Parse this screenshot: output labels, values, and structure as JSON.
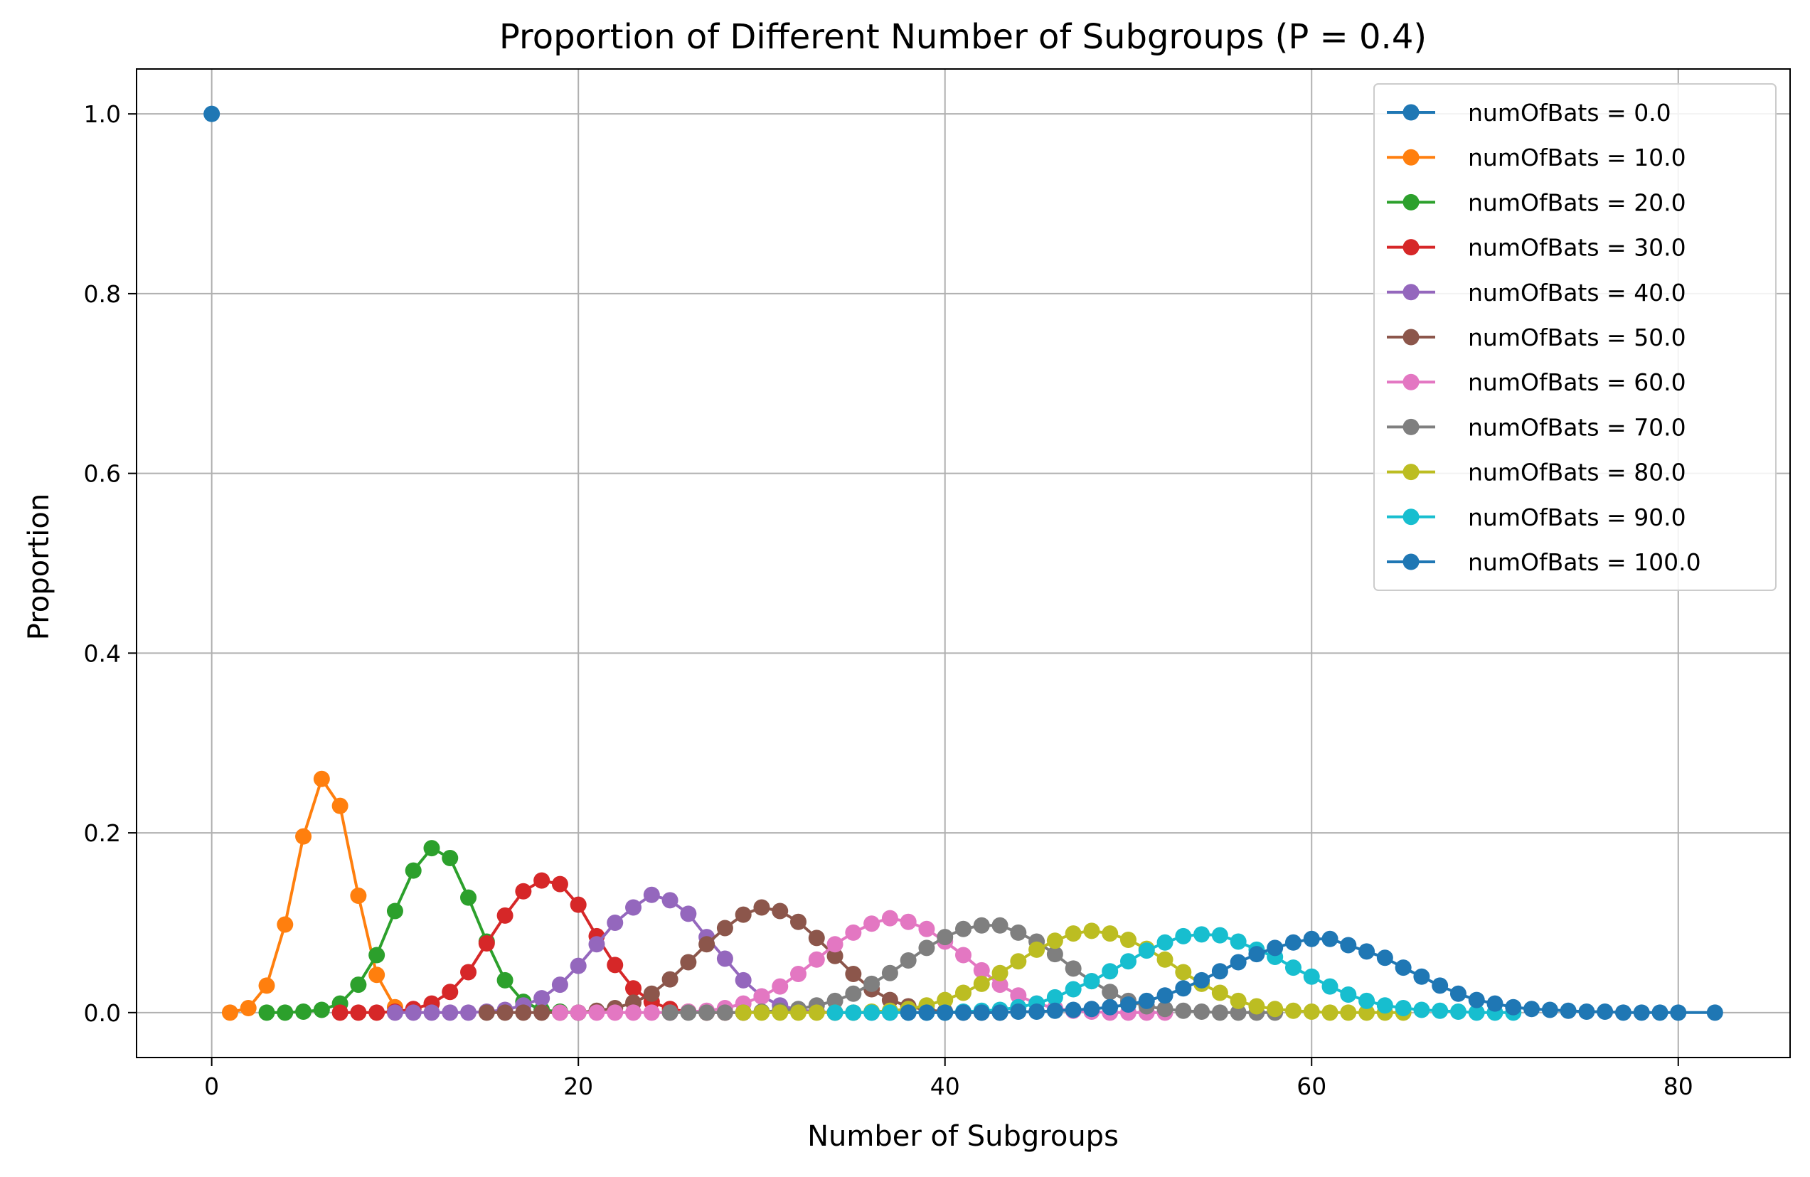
{
  "chart_data": {
    "type": "line",
    "title": "Proportion of Different Number of Subgroups (P = 0.4)",
    "xlabel": "Number of Subgroups",
    "ylabel": "Proportion",
    "xlim": [
      -4.1,
      86.1
    ],
    "ylim": [
      -0.05,
      1.05
    ],
    "xticks": [
      0,
      20,
      40,
      60,
      80
    ],
    "yticks": [
      0.0,
      0.2,
      0.4,
      0.6,
      0.8,
      1.0
    ],
    "xtick_labels": [
      "0",
      "20",
      "40",
      "60",
      "80"
    ],
    "ytick_labels": [
      "0.0",
      "0.2",
      "0.4",
      "0.6",
      "0.8",
      "1.0"
    ],
    "grid": true,
    "legend_position": "top-right",
    "series": [
      {
        "name": "numOfBats = 0.0",
        "color": "#1f77b4",
        "x": [
          0
        ],
        "y": [
          1.0
        ]
      },
      {
        "name": "numOfBats = 10.0",
        "color": "#ff7f0e",
        "x": [
          1,
          2,
          3,
          4,
          5,
          6,
          7,
          8,
          9,
          10
        ],
        "y": [
          0.0,
          0.005,
          0.03,
          0.098,
          0.196,
          0.26,
          0.23,
          0.13,
          0.042,
          0.006
        ]
      },
      {
        "name": "numOfBats = 20.0",
        "color": "#2ca02c",
        "x": [
          3,
          4,
          5,
          6,
          7,
          8,
          9,
          10,
          11,
          12,
          13,
          14,
          15,
          16,
          17,
          18,
          19,
          20
        ],
        "y": [
          0.0,
          0.0,
          0.001,
          0.003,
          0.01,
          0.031,
          0.064,
          0.113,
          0.158,
          0.183,
          0.172,
          0.128,
          0.079,
          0.036,
          0.012,
          0.003,
          0.001,
          0.0
        ]
      },
      {
        "name": "numOfBats = 30.0",
        "color": "#d62728",
        "x": [
          7,
          8,
          9,
          10,
          11,
          12,
          13,
          14,
          15,
          16,
          17,
          18,
          19,
          20,
          21,
          22,
          23,
          24,
          25,
          26,
          27,
          28,
          29
        ],
        "y": [
          0.0,
          0.0,
          0.0,
          0.001,
          0.004,
          0.01,
          0.023,
          0.045,
          0.077,
          0.108,
          0.135,
          0.147,
          0.143,
          0.12,
          0.085,
          0.053,
          0.027,
          0.012,
          0.004,
          0.001,
          0.0,
          0.0,
          0.0
        ]
      },
      {
        "name": "numOfBats = 40.0",
        "color": "#9467bd",
        "x": [
          10,
          11,
          12,
          13,
          14,
          15,
          16,
          17,
          18,
          19,
          20,
          21,
          22,
          23,
          24,
          25,
          26,
          27,
          28,
          29,
          30,
          31,
          32,
          33,
          34,
          35,
          36,
          37
        ],
        "y": [
          0.0,
          0.0,
          0.0,
          0.0,
          0.0,
          0.001,
          0.003,
          0.008,
          0.016,
          0.031,
          0.052,
          0.076,
          0.1,
          0.117,
          0.131,
          0.125,
          0.11,
          0.084,
          0.06,
          0.036,
          0.018,
          0.008,
          0.003,
          0.001,
          0.0,
          0.0,
          0.0,
          0.0
        ]
      },
      {
        "name": "numOfBats = 50.0",
        "color": "#8c564b",
        "x": [
          15,
          16,
          17,
          18,
          19,
          20,
          21,
          22,
          23,
          24,
          25,
          26,
          27,
          28,
          29,
          30,
          31,
          32,
          33,
          34,
          35,
          36,
          37,
          38,
          39,
          40,
          41,
          42,
          43
        ],
        "y": [
          0.0,
          0.0,
          0.0,
          0.0,
          0.0,
          0.0,
          0.002,
          0.005,
          0.011,
          0.021,
          0.037,
          0.056,
          0.076,
          0.094,
          0.109,
          0.117,
          0.113,
          0.101,
          0.083,
          0.063,
          0.043,
          0.026,
          0.014,
          0.007,
          0.003,
          0.001,
          0.0,
          0.0,
          0.0
        ]
      },
      {
        "name": "numOfBats = 60.0",
        "color": "#e377c2",
        "x": [
          19,
          20,
          21,
          22,
          23,
          24,
          25,
          26,
          27,
          28,
          29,
          30,
          31,
          32,
          33,
          34,
          35,
          36,
          37,
          38,
          39,
          40,
          41,
          42,
          43,
          44,
          45,
          46,
          47,
          48,
          49,
          50,
          51,
          52
        ],
        "y": [
          0.0,
          0.0,
          0.0,
          0.0,
          0.0,
          0.0,
          0.0,
          0.001,
          0.002,
          0.005,
          0.01,
          0.018,
          0.029,
          0.043,
          0.059,
          0.076,
          0.089,
          0.099,
          0.105,
          0.101,
          0.093,
          0.079,
          0.064,
          0.047,
          0.031,
          0.019,
          0.01,
          0.005,
          0.002,
          0.001,
          0.0,
          0.0,
          0.0,
          0.0
        ]
      },
      {
        "name": "numOfBats = 70.0",
        "color": "#7f7f7f",
        "x": [
          25,
          26,
          27,
          28,
          29,
          30,
          31,
          32,
          33,
          34,
          35,
          36,
          37,
          38,
          39,
          40,
          41,
          42,
          43,
          44,
          45,
          46,
          47,
          48,
          49,
          50,
          51,
          52,
          53,
          54,
          55,
          56,
          57,
          58
        ],
        "y": [
          0.0,
          0.0,
          0.0,
          0.0,
          0.0,
          0.001,
          0.002,
          0.004,
          0.008,
          0.013,
          0.021,
          0.032,
          0.044,
          0.058,
          0.072,
          0.084,
          0.093,
          0.097,
          0.097,
          0.089,
          0.079,
          0.065,
          0.049,
          0.035,
          0.023,
          0.013,
          0.007,
          0.004,
          0.002,
          0.001,
          0.0,
          0.0,
          0.0,
          0.0
        ]
      },
      {
        "name": "numOfBats = 80.0",
        "color": "#bcbd22",
        "x": [
          29,
          30,
          31,
          32,
          33,
          34,
          35,
          36,
          37,
          38,
          39,
          40,
          41,
          42,
          43,
          44,
          45,
          46,
          47,
          48,
          49,
          50,
          51,
          52,
          53,
          54,
          55,
          56,
          57,
          58,
          59,
          60,
          61,
          62,
          63,
          64,
          65
        ],
        "y": [
          0.0,
          0.0,
          0.0,
          0.0,
          0.0,
          0.0,
          0.0,
          0.001,
          0.002,
          0.004,
          0.008,
          0.014,
          0.022,
          0.032,
          0.044,
          0.057,
          0.07,
          0.08,
          0.088,
          0.091,
          0.088,
          0.081,
          0.071,
          0.059,
          0.045,
          0.032,
          0.022,
          0.013,
          0.007,
          0.004,
          0.002,
          0.001,
          0.0,
          0.0,
          0.0,
          0.0,
          0.0
        ]
      },
      {
        "name": "numOfBats = 90.0",
        "color": "#17becf",
        "x": [
          34,
          35,
          36,
          37,
          38,
          39,
          40,
          41,
          42,
          43,
          44,
          45,
          46,
          47,
          48,
          49,
          50,
          51,
          52,
          53,
          54,
          55,
          56,
          57,
          58,
          59,
          60,
          61,
          62,
          63,
          64,
          65,
          66,
          67,
          68,
          69,
          70,
          71
        ],
        "y": [
          0.0,
          0.0,
          0.0,
          0.0,
          0.0,
          0.0,
          0.0,
          0.001,
          0.002,
          0.003,
          0.006,
          0.01,
          0.017,
          0.026,
          0.035,
          0.046,
          0.057,
          0.069,
          0.078,
          0.085,
          0.087,
          0.086,
          0.079,
          0.07,
          0.062,
          0.05,
          0.04,
          0.029,
          0.02,
          0.013,
          0.008,
          0.005,
          0.003,
          0.002,
          0.001,
          0.0,
          0.0,
          0.0
        ]
      },
      {
        "name": "numOfBats = 100.0",
        "color": "#1f77b4",
        "x": [
          38,
          39,
          40,
          41,
          42,
          43,
          44,
          45,
          46,
          47,
          48,
          49,
          50,
          51,
          52,
          53,
          54,
          55,
          56,
          57,
          58,
          59,
          60,
          61,
          62,
          63,
          64,
          65,
          66,
          67,
          68,
          69,
          70,
          71,
          72,
          73,
          74,
          75,
          76,
          77,
          78,
          79,
          80,
          82
        ],
        "y": [
          0.0,
          0.0,
          0.0,
          0.0,
          0.0,
          0.0,
          0.001,
          0.001,
          0.002,
          0.003,
          0.004,
          0.006,
          0.009,
          0.013,
          0.019,
          0.027,
          0.036,
          0.046,
          0.056,
          0.065,
          0.072,
          0.078,
          0.082,
          0.082,
          0.075,
          0.068,
          0.061,
          0.05,
          0.04,
          0.03,
          0.021,
          0.014,
          0.01,
          0.006,
          0.004,
          0.003,
          0.002,
          0.001,
          0.001,
          0.0,
          0.0,
          0.0,
          0.0,
          0.0
        ]
      }
    ]
  }
}
